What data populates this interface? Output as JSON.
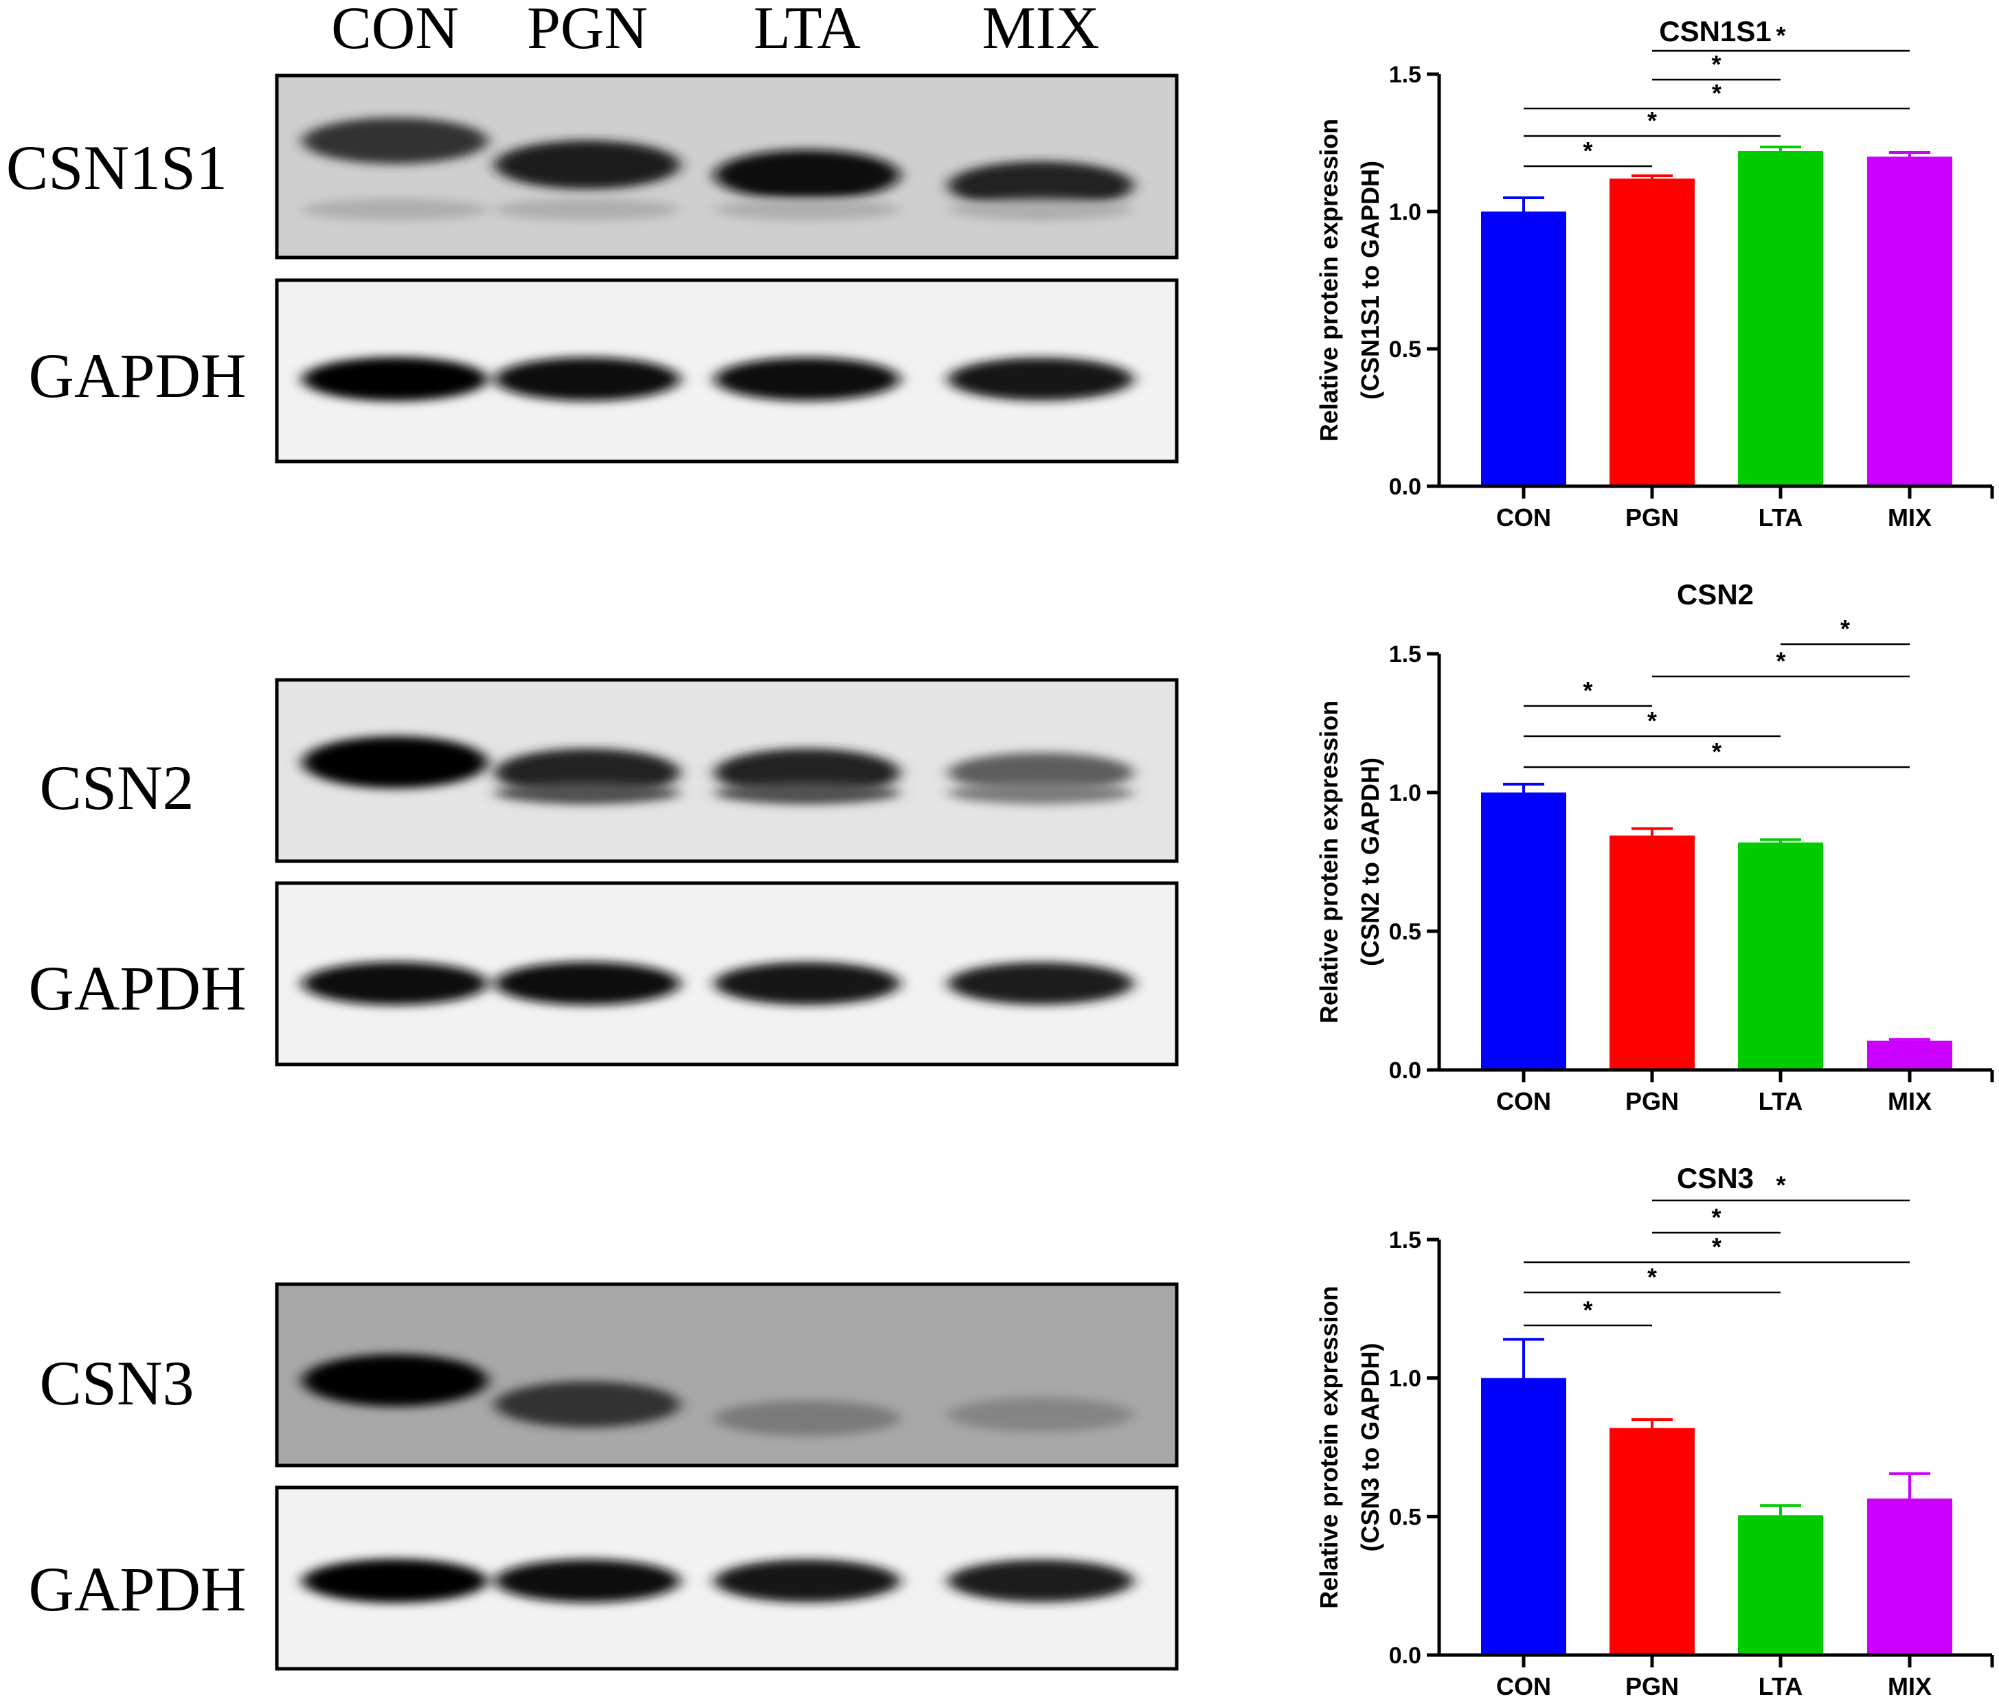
{
  "blot": {
    "lane_labels": [
      "CON",
      "PGN",
      "LTA",
      "MIX"
    ],
    "panels": [
      {
        "target": "CSN1S1",
        "loading": "GAPDH",
        "target_intensity": [
          0.78,
          0.88,
          0.95,
          0.85
        ],
        "target_faint": 0.22,
        "loading_intensity": [
          1.0,
          0.98,
          0.96,
          0.93
        ]
      },
      {
        "target": "CSN2",
        "loading": "GAPDH",
        "target_intensity": [
          1.0,
          0.85,
          0.85,
          0.55
        ],
        "target_faint": 0.0,
        "loading_intensity": [
          0.95,
          0.95,
          0.93,
          0.9
        ]
      },
      {
        "target": "CSN3",
        "loading": "GAPDH",
        "target_intensity": [
          1.0,
          0.78,
          0.4,
          0.35
        ],
        "target_faint": 0.0,
        "loading_intensity": [
          1.0,
          0.95,
          0.92,
          0.9
        ]
      }
    ]
  },
  "chart_data": [
    {
      "type": "bar",
      "title": "CSN1S1",
      "ylabel_line1": "Relative protein expression",
      "ylabel_line2": "(CSN1S1 to GAPDH)",
      "categories": [
        "CON",
        "PGN",
        "LTA",
        "MIX"
      ],
      "values": [
        1.0,
        1.12,
        1.22,
        1.2
      ],
      "errors": [
        0.05,
        0.01,
        0.015,
        0.015
      ],
      "colors": [
        "#0000ff",
        "#ff0000",
        "#00cc00",
        "#cc00ff"
      ],
      "ylim": [
        0,
        1.5
      ],
      "yticks": [
        "0.0",
        "0.5",
        "1.0",
        "1.5"
      ],
      "significance": [
        {
          "from": 0,
          "to": 1,
          "label": "*"
        },
        {
          "from": 0,
          "to": 2,
          "label": "*"
        },
        {
          "from": 0,
          "to": 3,
          "label": "*"
        },
        {
          "from": 1,
          "to": 2,
          "label": "*"
        },
        {
          "from": 1,
          "to": 3,
          "label": "*"
        }
      ]
    },
    {
      "type": "bar",
      "title": "CSN2",
      "ylabel_line1": "Relative protein expression",
      "ylabel_line2": "(CSN2 to GAPDH)",
      "categories": [
        "CON",
        "PGN",
        "LTA",
        "MIX"
      ],
      "values": [
        1.0,
        0.845,
        0.82,
        0.105
      ],
      "errors": [
        0.03,
        0.025,
        0.01,
        0.005
      ],
      "colors": [
        "#0000ff",
        "#ff0000",
        "#00cc00",
        "#cc00ff"
      ],
      "ylim": [
        0,
        1.5
      ],
      "yticks": [
        "0.0",
        "0.5",
        "1.0",
        "1.5"
      ],
      "significance": [
        {
          "from": 0,
          "to": 3,
          "label": "*"
        },
        {
          "from": 0,
          "to": 2,
          "label": "*"
        },
        {
          "from": 0,
          "to": 1,
          "label": "*"
        },
        {
          "from": 1,
          "to": 3,
          "label": "*"
        },
        {
          "from": 2,
          "to": 3,
          "label": "*"
        }
      ]
    },
    {
      "type": "bar",
      "title": "CSN3",
      "ylabel_line1": "Relative protein expression",
      "ylabel_line2": "(CSN3 to GAPDH)",
      "categories": [
        "CON",
        "PGN",
        "LTA",
        "MIX"
      ],
      "values": [
        1.0,
        0.82,
        0.505,
        0.565
      ],
      "errors": [
        0.14,
        0.03,
        0.035,
        0.09
      ],
      "colors": [
        "#0000ff",
        "#ff0000",
        "#00cc00",
        "#cc00ff"
      ],
      "ylim": [
        0,
        1.5
      ],
      "yticks": [
        "0.0",
        "0.5",
        "1.0",
        "1.5"
      ],
      "significance": [
        {
          "from": 0,
          "to": 1,
          "label": "*"
        },
        {
          "from": 0,
          "to": 2,
          "label": "*"
        },
        {
          "from": 0,
          "to": 3,
          "label": "*"
        },
        {
          "from": 1,
          "to": 2,
          "label": "*"
        },
        {
          "from": 1,
          "to": 3,
          "label": "*"
        }
      ]
    }
  ]
}
